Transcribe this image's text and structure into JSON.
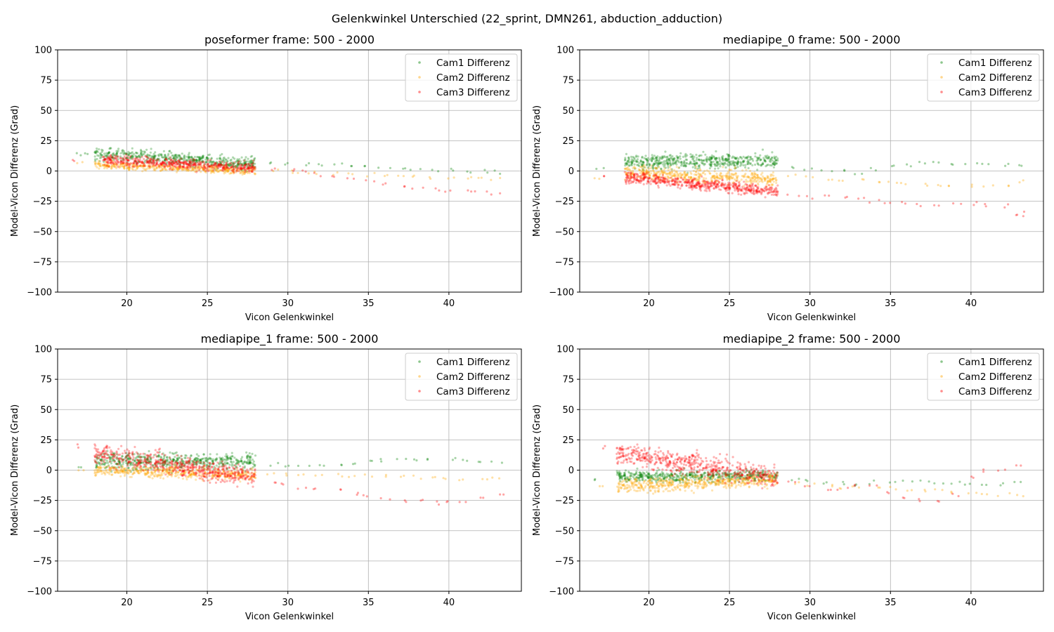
{
  "figure": {
    "suptitle": "Gelenkwinkel Unterschied (22_sprint, DMN261, abduction_adduction)"
  },
  "chart_data": [
    {
      "type": "scatter",
      "title": "poseformer frame: 500 - 2000",
      "xlabel": "Vicon Gelenkwinkel",
      "ylabel": "Model-Vicon Differenz (Grad)",
      "xlim": [
        15.7,
        44.5
      ],
      "ylim": [
        -100,
        100
      ],
      "xticks": [
        20,
        25,
        30,
        35,
        40
      ],
      "yticks": [
        100,
        75,
        50,
        25,
        0,
        -25,
        -50,
        -75,
        -100
      ],
      "grid": true,
      "legend_position": "upper right",
      "series": [
        {
          "name": "Cam1 Differenz",
          "color": "#008000",
          "cluster": {
            "x_range": [
              18,
              28
            ],
            "y_center": [
              14,
              6
            ],
            "y_spread": 4.5,
            "n": 520
          },
          "tail": [
            [
              29,
              7
            ],
            [
              30,
              6
            ],
            [
              31,
              5
            ],
            [
              32,
              6
            ],
            [
              33,
              5
            ],
            [
              34,
              4
            ],
            [
              35,
              3
            ],
            [
              36,
              2
            ],
            [
              37,
              2
            ],
            [
              38,
              1
            ],
            [
              39,
              1
            ],
            [
              40,
              1
            ],
            [
              41,
              0
            ],
            [
              42,
              0
            ],
            [
              43,
              -1
            ],
            [
              17,
              14
            ],
            [
              17.5,
              15
            ]
          ]
        },
        {
          "name": "Cam2 Differenz",
          "color": "#ffa500",
          "cluster": {
            "x_range": [
              18,
              28
            ],
            "y_center": [
              5,
              0
            ],
            "y_spread": 2.5,
            "n": 420
          },
          "tail": [
            [
              29,
              0
            ],
            [
              30,
              -1
            ],
            [
              31,
              -1
            ],
            [
              32,
              -2
            ],
            [
              33,
              -2
            ],
            [
              34,
              -2
            ],
            [
              35,
              -3
            ],
            [
              36,
              -3
            ],
            [
              37,
              -4
            ],
            [
              38,
              -4
            ],
            [
              39,
              -5
            ],
            [
              40,
              -5
            ],
            [
              41,
              -5
            ],
            [
              42,
              -6
            ],
            [
              43,
              -6
            ],
            [
              17,
              6
            ]
          ]
        },
        {
          "name": "Cam3 Differenz",
          "color": "#ff0000",
          "cluster": {
            "x_range": [
              18.5,
              28
            ],
            "y_center": [
              9,
              3
            ],
            "y_spread": 3.5,
            "n": 520
          },
          "tail": [
            [
              29,
              1
            ],
            [
              30,
              0
            ],
            [
              31,
              -1
            ],
            [
              32,
              -3
            ],
            [
              33,
              -5
            ],
            [
              34,
              -7
            ],
            [
              35,
              -9
            ],
            [
              36,
              -11
            ],
            [
              37,
              -13
            ],
            [
              38,
              -14
            ],
            [
              39,
              -15
            ],
            [
              40,
              -16
            ],
            [
              41,
              -17
            ],
            [
              42,
              -18
            ],
            [
              43,
              -18
            ],
            [
              17,
              8
            ]
          ]
        }
      ]
    },
    {
      "type": "scatter",
      "title": "mediapipe_0 frame: 500 - 2000",
      "xlabel": "Vicon Gelenkwinkel",
      "ylabel": "Model-Vicon Differenz (Grad)",
      "xlim": [
        15.7,
        44.5
      ],
      "ylim": [
        -100,
        100
      ],
      "xticks": [
        20,
        25,
        30,
        35,
        40
      ],
      "yticks": [
        100,
        75,
        50,
        25,
        0,
        -25,
        -50,
        -75,
        -100
      ],
      "grid": true,
      "legend_position": "upper right",
      "series": [
        {
          "name": "Cam1 Differenz",
          "color": "#008000",
          "cluster": {
            "x_range": [
              18.5,
              28
            ],
            "y_center": [
              7,
              9
            ],
            "y_spread": 5,
            "n": 520
          },
          "tail": [
            [
              29,
              3
            ],
            [
              30,
              2
            ],
            [
              31,
              1
            ],
            [
              32,
              0
            ],
            [
              33,
              -2
            ],
            [
              34,
              1
            ],
            [
              35,
              3
            ],
            [
              36,
              5
            ],
            [
              37,
              6
            ],
            [
              38,
              7
            ],
            [
              39,
              6
            ],
            [
              40,
              7
            ],
            [
              41,
              6
            ],
            [
              42,
              5
            ],
            [
              43,
              4
            ],
            [
              17,
              1
            ]
          ]
        },
        {
          "name": "Cam2 Differenz",
          "color": "#ffa500",
          "cluster": {
            "x_range": [
              18.5,
              28
            ],
            "y_center": [
              -1,
              -7
            ],
            "y_spread": 5,
            "n": 480
          },
          "tail": [
            [
              29,
              -4
            ],
            [
              30,
              -5
            ],
            [
              31,
              -6
            ],
            [
              32,
              -7
            ],
            [
              33,
              -8
            ],
            [
              34,
              -9
            ],
            [
              35,
              -10
            ],
            [
              36,
              -10
            ],
            [
              37,
              -11
            ],
            [
              38,
              -11
            ],
            [
              39,
              -12
            ],
            [
              40,
              -12
            ],
            [
              41,
              -12
            ],
            [
              42,
              -11
            ],
            [
              43,
              -9
            ],
            [
              17,
              -7
            ]
          ]
        },
        {
          "name": "Cam3 Differenz",
          "color": "#ff0000",
          "cluster": {
            "x_range": [
              18.5,
              28
            ],
            "y_center": [
              -5,
              -17
            ],
            "y_spread": 4,
            "n": 560
          },
          "tail": [
            [
              29,
              -20
            ],
            [
              30,
              -22
            ],
            [
              31,
              -21
            ],
            [
              32,
              -22
            ],
            [
              33,
              -23
            ],
            [
              34,
              -25
            ],
            [
              35,
              -26
            ],
            [
              36,
              -27
            ],
            [
              37,
              -28
            ],
            [
              38,
              -29
            ],
            [
              39,
              -28
            ],
            [
              40,
              -27
            ],
            [
              41,
              -28
            ],
            [
              42,
              -29
            ],
            [
              43,
              -35
            ],
            [
              43.2,
              -37
            ],
            [
              17,
              -4
            ]
          ]
        }
      ]
    },
    {
      "type": "scatter",
      "title": "mediapipe_1 frame: 500 - 2000",
      "xlabel": "Vicon Gelenkwinkel",
      "ylabel": "Model-Vicon Differenz (Grad)",
      "xlim": [
        15.7,
        44.5
      ],
      "ylim": [
        -100,
        100
      ],
      "xticks": [
        20,
        25,
        30,
        35,
        40
      ],
      "yticks": [
        100,
        75,
        50,
        25,
        0,
        -25,
        -50,
        -75,
        -100
      ],
      "grid": true,
      "legend_position": "upper right",
      "series": [
        {
          "name": "Cam1 Differenz",
          "color": "#008000",
          "cluster": {
            "x_range": [
              18,
              28
            ],
            "y_center": [
              8,
              7
            ],
            "y_spread": 6,
            "n": 540
          },
          "tail": [
            [
              29,
              5
            ],
            [
              30,
              4
            ],
            [
              31,
              3
            ],
            [
              32,
              3
            ],
            [
              33,
              5
            ],
            [
              34,
              6
            ],
            [
              35,
              7
            ],
            [
              36,
              8
            ],
            [
              37,
              9
            ],
            [
              38,
              9
            ],
            [
              39,
              10
            ],
            [
              40,
              9
            ],
            [
              41,
              8
            ],
            [
              42,
              7
            ],
            [
              43,
              7
            ],
            [
              17,
              1
            ]
          ]
        },
        {
          "name": "Cam2 Differenz",
          "color": "#ffa500",
          "cluster": {
            "x_range": [
              18,
              28
            ],
            "y_center": [
              0,
              -4
            ],
            "y_spread": 4,
            "n": 460
          },
          "tail": [
            [
              29,
              -4
            ],
            [
              30,
              -3
            ],
            [
              31,
              -3
            ],
            [
              32,
              -4
            ],
            [
              33,
              -4
            ],
            [
              34,
              -5
            ],
            [
              35,
              -5
            ],
            [
              36,
              -5
            ],
            [
              37,
              -6
            ],
            [
              38,
              -6
            ],
            [
              39,
              -6
            ],
            [
              40,
              -7
            ],
            [
              41,
              -7
            ],
            [
              42,
              -7
            ],
            [
              43,
              -6
            ],
            [
              17,
              -1
            ]
          ]
        },
        {
          "name": "Cam3 Differenz",
          "color": "#ff0000",
          "cluster": {
            "x_range": [
              18,
              28
            ],
            "y_center": [
              14,
              -6
            ],
            "y_spread": 7,
            "n": 560
          },
          "tail": [
            [
              29,
              -10
            ],
            [
              30,
              -12
            ],
            [
              31,
              -14
            ],
            [
              32,
              -16
            ],
            [
              33,
              -17
            ],
            [
              34,
              -19
            ],
            [
              35,
              -21
            ],
            [
              36,
              -23
            ],
            [
              37,
              -25
            ],
            [
              38,
              -26
            ],
            [
              39,
              -27
            ],
            [
              40,
              -27
            ],
            [
              41,
              -26
            ],
            [
              42,
              -24
            ],
            [
              43,
              -20
            ],
            [
              17,
              20
            ]
          ]
        }
      ]
    },
    {
      "type": "scatter",
      "title": "mediapipe_2 frame: 500 - 2000",
      "xlabel": "Vicon Gelenkwinkel",
      "ylabel": "Model-Vicon Differenz (Grad)",
      "xlim": [
        15.7,
        44.5
      ],
      "ylim": [
        -100,
        100
      ],
      "xticks": [
        20,
        25,
        30,
        35,
        40
      ],
      "yticks": [
        100,
        75,
        50,
        25,
        0,
        -25,
        -50,
        -75,
        -100
      ],
      "grid": true,
      "legend_position": "upper right",
      "series": [
        {
          "name": "Cam1 Differenz",
          "color": "#008000",
          "cluster": {
            "x_range": [
              18,
              28
            ],
            "y_center": [
              -5,
              -5
            ],
            "y_spread": 4,
            "n": 520
          },
          "tail": [
            [
              29,
              -8
            ],
            [
              30,
              -9
            ],
            [
              31,
              -10
            ],
            [
              32,
              -11
            ],
            [
              33,
              -12
            ],
            [
              34,
              -10
            ],
            [
              35,
              -9
            ],
            [
              36,
              -8
            ],
            [
              37,
              -9
            ],
            [
              38,
              -10
            ],
            [
              39,
              -10
            ],
            [
              40,
              -11
            ],
            [
              41,
              -11
            ],
            [
              42,
              -11
            ],
            [
              43,
              -11
            ],
            [
              17,
              -7
            ]
          ]
        },
        {
          "name": "Cam2 Differenz",
          "color": "#ffa500",
          "cluster": {
            "x_range": [
              18,
              28
            ],
            "y_center": [
              -13,
              -8
            ],
            "y_spread": 5,
            "n": 500
          },
          "tail": [
            [
              29,
              -11
            ],
            [
              30,
              -12
            ],
            [
              31,
              -13
            ],
            [
              32,
              -14
            ],
            [
              33,
              -14
            ],
            [
              34,
              -15
            ],
            [
              35,
              -15
            ],
            [
              36,
              -16
            ],
            [
              37,
              -17
            ],
            [
              38,
              -17
            ],
            [
              39,
              -18
            ],
            [
              40,
              -19
            ],
            [
              41,
              -19
            ],
            [
              42,
              -20
            ],
            [
              43,
              -21
            ],
            [
              17,
              -13
            ]
          ]
        },
        {
          "name": "Cam3 Differenz",
          "color": "#ff0000",
          "cluster": {
            "x_range": [
              18,
              28
            ],
            "y_center": [
              14,
              -6
            ],
            "y_spread": 7.5,
            "n": 560
          },
          "tail": [
            [
              29,
              -10
            ],
            [
              30,
              -14
            ],
            [
              31,
              -16
            ],
            [
              32,
              -15
            ],
            [
              33,
              -13
            ],
            [
              34,
              -14
            ],
            [
              35,
              -18
            ],
            [
              36,
              -22
            ],
            [
              37,
              -25
            ],
            [
              38,
              -26
            ],
            [
              39,
              -20
            ],
            [
              40,
              -5
            ],
            [
              41,
              0
            ],
            [
              42,
              1
            ],
            [
              43,
              3
            ],
            [
              17,
              19
            ]
          ]
        }
      ]
    }
  ]
}
